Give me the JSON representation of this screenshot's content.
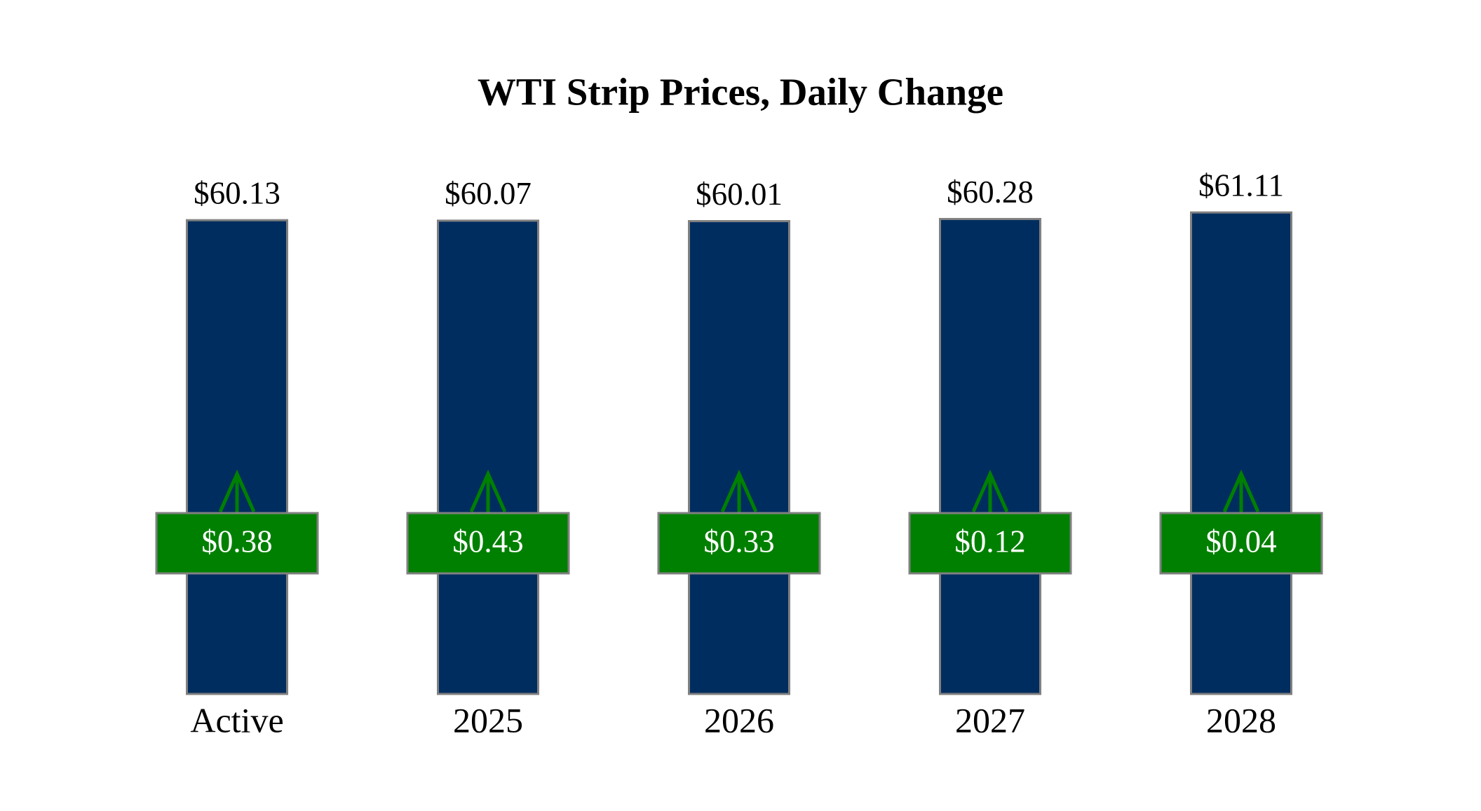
{
  "chart_data": {
    "type": "bar",
    "title": "WTI Strip Prices, Daily Change",
    "categories": [
      "Active",
      "2025",
      "2026",
      "2027",
      "2028"
    ],
    "values": [
      60.13,
      60.07,
      60.01,
      60.28,
      61.11
    ],
    "value_labels": [
      "$60.13",
      "$60.07",
      "$60.01",
      "$60.28",
      "$61.11"
    ],
    "color": "#002d5f",
    "changes": {
      "values": [
        0.38,
        0.43,
        0.33,
        0.12,
        0.04
      ],
      "value_labels": [
        "$0.38",
        "$0.43",
        "$0.33",
        "$0.12",
        "$0.04"
      ],
      "color": "#008000"
    }
  }
}
